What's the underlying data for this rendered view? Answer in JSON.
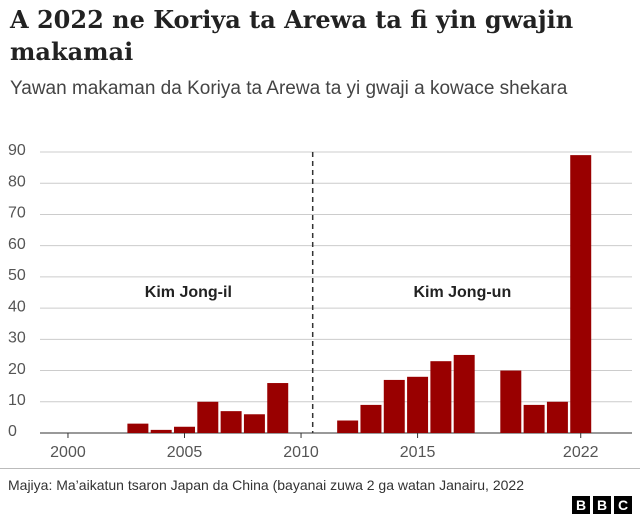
{
  "chart_data": {
    "type": "bar",
    "title": "A 2022 ne Koriya ta Arewa ta fi yin gwajin makamai",
    "subtitle": "Yawan makaman da Koriya ta Arewa ta yi gwaji a kowace shekara",
    "x": [
      2003,
      2004,
      2005,
      2006,
      2007,
      2008,
      2009,
      2012,
      2013,
      2014,
      2015,
      2016,
      2017,
      2019,
      2020,
      2021,
      2022
    ],
    "values": [
      3,
      1,
      2,
      10,
      7,
      6,
      16,
      4,
      9,
      17,
      18,
      23,
      25,
      20,
      9,
      10,
      89
    ],
    "color": "#990000",
    "xlim": [
      1998.8,
      2024.2
    ],
    "xticks": [
      2000,
      2005,
      2010,
      2015,
      2022
    ],
    "ylim": [
      0,
      90
    ],
    "yticks": [
      0,
      10,
      20,
      30,
      40,
      50,
      60,
      70,
      80,
      90
    ],
    "grid": true,
    "annotations": [
      "Kim Jong-il",
      "Kim Jong-un"
    ]
  },
  "footer": {
    "source": "Majiya: Ma’aikatun tsaron Japan da China (bayanai zuwa 2 ga watan Janairu, 2022",
    "logo": "BBC"
  }
}
